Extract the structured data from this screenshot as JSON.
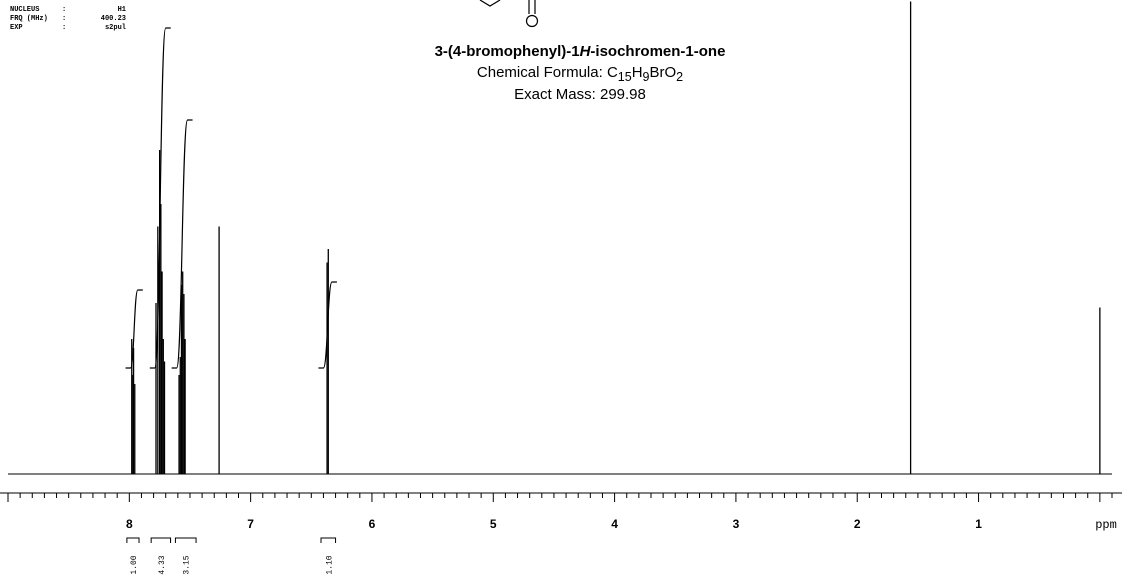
{
  "header": {
    "params": [
      {
        "key": "NUCLEUS",
        "value": "H1"
      },
      {
        "key": "FRQ (MHz)",
        "value": "400.23"
      },
      {
        "key": "EXP",
        "value": "s2pul"
      }
    ]
  },
  "compound": {
    "name_prefix": "3-(4-bromophenyl)-1",
    "name_italic": "H",
    "name_suffix": "-isochromen-1-one",
    "formula_label": "Chemical Formula: ",
    "formula_parts": [
      {
        "t": "C",
        "sub": false
      },
      {
        "t": "15",
        "sub": true
      },
      {
        "t": "H",
        "sub": false
      },
      {
        "t": "9",
        "sub": true
      },
      {
        "t": "BrO",
        "sub": false
      },
      {
        "t": "2",
        "sub": true
      }
    ],
    "mass_label": "Exact Mass: 299.98"
  },
  "chart_data": {
    "type": "line",
    "title": "",
    "xlabel": "ppm",
    "xlim": [
      9.0,
      -0.1
    ],
    "x_direction": "reversed",
    "major_ticks": [
      8,
      7,
      6,
      5,
      4,
      3,
      2,
      1
    ],
    "minor_tick_step": 0.1,
    "peaks": [
      {
        "ppm": 7.98,
        "height": 0.3
      },
      {
        "ppm": 7.97,
        "height": 0.22
      },
      {
        "ppm": 7.965,
        "height": 0.28
      },
      {
        "ppm": 7.955,
        "height": 0.2
      },
      {
        "ppm": 7.78,
        "height": 0.38
      },
      {
        "ppm": 7.765,
        "height": 0.55
      },
      {
        "ppm": 7.75,
        "height": 0.72
      },
      {
        "ppm": 7.74,
        "height": 0.6
      },
      {
        "ppm": 7.73,
        "height": 0.45
      },
      {
        "ppm": 7.72,
        "height": 0.3
      },
      {
        "ppm": 7.71,
        "height": 0.25
      },
      {
        "ppm": 7.59,
        "height": 0.22
      },
      {
        "ppm": 7.58,
        "height": 0.26
      },
      {
        "ppm": 7.57,
        "height": 0.42
      },
      {
        "ppm": 7.56,
        "height": 0.45
      },
      {
        "ppm": 7.55,
        "height": 0.4
      },
      {
        "ppm": 7.54,
        "height": 0.3
      },
      {
        "ppm": 7.26,
        "height": 0.55
      },
      {
        "ppm": 6.37,
        "height": 0.47
      },
      {
        "ppm": 6.36,
        "height": 0.5
      },
      {
        "ppm": 1.56,
        "height": 1.05
      },
      {
        "ppm": 0.0,
        "height": 0.37
      }
    ],
    "integrals": [
      {
        "from": 8.02,
        "to": 7.92,
        "value": "1.00"
      },
      {
        "from": 7.82,
        "to": 7.66,
        "value": "4.33"
      },
      {
        "from": 7.62,
        "to": 7.45,
        "value": "3.15"
      },
      {
        "from": 6.42,
        "to": 6.3,
        "value": "1.10"
      }
    ],
    "colors": {
      "line": "#000000",
      "background": "#ffffff"
    }
  }
}
